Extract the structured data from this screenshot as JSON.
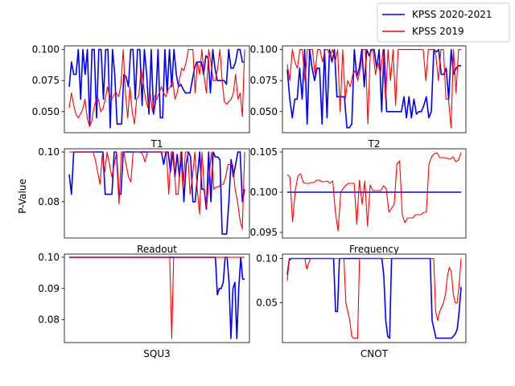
{
  "figure": {
    "ylabel": "P-Value"
  },
  "legend": {
    "placement": "top-right (figure)",
    "entries": [
      {
        "label": "KPSS 2020-2021",
        "color": "#0000ff"
      },
      {
        "label": "KPSS 2019",
        "color": "#ff0000"
      }
    ]
  },
  "chart_data": [
    {
      "type": "line",
      "xlabel": "T1",
      "ylim": [
        0.033,
        0.103
      ],
      "yticks": [
        0.05,
        0.075,
        0.1
      ],
      "ytick_labels": [
        "0.050",
        "0.075",
        "0.100"
      ],
      "series": [
        {
          "name": "KPSS 2020-2021",
          "color": "#0000ff",
          "values": [
            0.07,
            0.09,
            0.08,
            0.08,
            0.1,
            0.06,
            0.1,
            0.08,
            0.1,
            0.04,
            0.1,
            0.1,
            0.045,
            0.1,
            0.1,
            0.06,
            0.1,
            0.1,
            0.037,
            0.1,
            0.08,
            0.04,
            0.04,
            0.04,
            0.08,
            0.078,
            0.07,
            0.1,
            0.1,
            0.06,
            0.1,
            0.1,
            0.055,
            0.1,
            0.08,
            0.048,
            0.1,
            0.048,
            0.06,
            0.1,
            0.045,
            0.045,
            0.1,
            0.065,
            0.1,
            0.07,
            0.1,
            0.08,
            0.07,
            0.072,
            0.068,
            0.065,
            0.065,
            0.065,
            0.075,
            0.085,
            0.09,
            0.09,
            0.09,
            0.08,
            0.095,
            0.093,
            0.065,
            0.1,
            0.085,
            0.075,
            0.075,
            0.075,
            0.075,
            0.072,
            0.1,
            0.085,
            0.085,
            0.09,
            0.1,
            0.1,
            0.09,
            0.09
          ]
        },
        {
          "name": "KPSS 2019",
          "color": "#ff0000",
          "values": [
            0.053,
            0.065,
            0.055,
            0.048,
            0.045,
            0.048,
            0.052,
            0.06,
            0.045,
            0.038,
            0.042,
            0.053,
            0.06,
            0.06,
            0.05,
            0.052,
            0.06,
            0.07,
            0.063,
            0.06,
            0.064,
            0.065,
            0.062,
            0.072,
            0.1,
            0.065,
            0.045,
            0.07,
            0.05,
            0.04,
            0.06,
            0.063,
            0.085,
            0.072,
            0.06,
            0.053,
            0.065,
            0.05,
            0.063,
            0.06,
            0.065,
            0.07,
            0.065,
            0.062,
            0.068,
            0.07,
            0.075,
            0.06,
            0.065,
            0.075,
            0.085,
            0.083,
            0.09,
            0.1,
            0.1,
            0.1,
            0.065,
            0.09,
            0.08,
            0.1,
            0.078,
            0.065,
            0.1,
            0.09,
            0.075,
            0.075,
            0.085,
            0.1,
            0.075,
            0.058,
            0.056,
            0.058,
            0.06,
            0.065,
            0.08,
            0.06,
            0.065,
            0.046,
            0.1
          ]
        }
      ]
    },
    {
      "type": "line",
      "xlabel": "T2",
      "ylim": [
        0.033,
        0.103
      ],
      "yticks": [
        0.05,
        0.075,
        0.1
      ],
      "ytick_labels": [
        "0.050",
        "0.075",
        "0.100"
      ],
      "series": [
        {
          "name": "KPSS 2020-2021",
          "color": "#0000ff",
          "values": [
            0.084,
            0.06,
            0.045,
            0.06,
            0.06,
            0.085,
            0.06,
            0.1,
            0.04,
            0.1,
            0.085,
            0.075,
            0.085,
            0.085,
            0.04,
            0.1,
            0.045,
            0.1,
            0.09,
            0.1,
            0.062,
            0.062,
            0.062,
            0.062,
            0.037,
            0.037,
            0.04,
            0.1,
            0.078,
            0.085,
            0.1,
            0.07,
            0.1,
            0.095,
            0.1,
            0.1,
            0.085,
            0.1,
            0.05,
            0.1,
            0.05,
            0.05,
            0.05,
            0.05,
            0.05,
            0.05,
            0.05,
            0.062,
            0.045,
            0.062,
            0.045,
            0.06,
            0.048,
            0.05,
            0.05,
            0.055,
            0.062,
            0.045,
            0.05,
            0.1,
            0.098,
            0.1,
            0.08,
            0.08,
            0.085,
            0.06,
            0.1,
            0.08,
            0.085,
            0.087,
            0.087
          ]
        },
        {
          "name": "KPSS 2019",
          "color": "#ff0000",
          "values": [
            0.088,
            0.075,
            0.1,
            0.09,
            0.085,
            0.1,
            0.1,
            0.075,
            0.1,
            0.1,
            0.1,
            0.08,
            0.1,
            0.1,
            0.09,
            0.1,
            0.1,
            0.095,
            0.1,
            0.09,
            0.1,
            0.05,
            0.1,
            0.06,
            0.075,
            0.07,
            0.08,
            0.083,
            0.075,
            0.085,
            0.1,
            0.1,
            0.04,
            0.1,
            0.1,
            0.08,
            0.09,
            0.08,
            0.1,
            0.06,
            0.1,
            0.075,
            0.1,
            0.055,
            0.1,
            0.1,
            0.1,
            0.1,
            0.1,
            0.1,
            0.1,
            0.1,
            0.1,
            0.1,
            0.1,
            0.075,
            0.1,
            0.1,
            0.1,
            0.095,
            0.075,
            0.1,
            0.1,
            0.06,
            0.06,
            0.037,
            0.1,
            0.065,
            0.1,
            0.1
          ]
        }
      ]
    },
    {
      "type": "line",
      "xlabel": "Readout",
      "ylim": [
        0.0654,
        0.1013
      ],
      "yticks": [
        0.08,
        0.1
      ],
      "ytick_labels": [
        "0.08",
        "0.10"
      ],
      "series": [
        {
          "name": "KPSS 2020-2021",
          "color": "#0000ff",
          "values": [
            0.091,
            0.083,
            0.1,
            0.1,
            0.1,
            0.1,
            0.1,
            0.1,
            0.1,
            0.1,
            0.1,
            0.1,
            0.1,
            0.1,
            0.1,
            0.1,
            0.083,
            0.083,
            0.083,
            0.083,
            0.1,
            0.1,
            0.083,
            0.083,
            0.1,
            0.1,
            0.1,
            0.1,
            0.1,
            0.1,
            0.1,
            0.1,
            0.1,
            0.1,
            0.1,
            0.1,
            0.1,
            0.1,
            0.1,
            0.1,
            0.1,
            0.1,
            0.095,
            0.1,
            0.1,
            0.092,
            0.1,
            0.09,
            0.099,
            0.09,
            0.1,
            0.08,
            0.095,
            0.1,
            0.098,
            0.08,
            0.08,
            0.09,
            0.1,
            0.085,
            0.085,
            0.077,
            0.1,
            0.08,
            0.1,
            0.098,
            0.098,
            0.097,
            0.067,
            0.067,
            0.067,
            0.08,
            0.097,
            0.09,
            0.095,
            0.1,
            0.1,
            0.08,
            0.085
          ]
        },
        {
          "name": "KPSS 2019",
          "color": "#ff0000",
          "values": [
            0.1,
            0.1,
            0.1,
            0.1,
            0.1,
            0.1,
            0.1,
            0.1,
            0.1,
            0.1,
            0.1,
            0.097,
            0.092,
            0.087,
            0.099,
            0.092,
            0.1,
            0.095,
            0.09,
            0.095,
            0.1,
            0.079,
            0.1,
            0.1,
            0.095,
            0.09,
            0.088,
            0.1,
            0.1,
            0.1,
            0.1,
            0.099,
            0.096,
            0.1,
            0.1,
            0.1,
            0.1,
            0.1,
            0.1,
            0.1,
            0.1,
            0.1,
            0.083,
            0.1,
            0.1,
            0.083,
            0.083,
            0.1,
            0.085,
            0.1,
            0.1,
            0.083,
            0.09,
            0.1,
            0.085,
            0.075,
            0.1,
            0.085,
            0.078,
            0.09,
            0.1,
            0.085,
            0.086,
            0.086,
            0.087,
            0.087,
            0.09,
            0.095,
            0.095,
            0.095,
            0.085,
            0.08,
            0.073,
            0.069,
            0.1
          ]
        }
      ]
    },
    {
      "type": "line",
      "xlabel": "Frequency",
      "ylim": [
        0.0943,
        0.1054
      ],
      "yticks": [
        0.095,
        0.1,
        0.105
      ],
      "ytick_labels": [
        "0.095",
        "0.100",
        "0.105"
      ],
      "series": [
        {
          "name": "KPSS 2020-2021",
          "color": "#0000ff",
          "values": [
            0.1,
            0.1
          ]
        },
        {
          "name": "KPSS 2019",
          "color": "#ff0000",
          "values": [
            0.1022,
            0.1019,
            0.0963,
            0.1003,
            0.102,
            0.1023,
            0.1012,
            0.1011,
            0.1011,
            0.1012,
            0.1012,
            0.1015,
            0.1015,
            0.1013,
            0.1013,
            0.1014,
            0.1011,
            0.1014,
            0.0975,
            0.0952,
            0.1,
            0.1005,
            0.1009,
            0.1011,
            0.1011,
            0.1011,
            0.096,
            0.1015,
            0.0985,
            0.1014,
            0.0958,
            0.1009,
            0.1002,
            0.1002,
            0.1002,
            0.1002,
            0.1008,
            0.1004,
            0.0975,
            0.098,
            0.0985,
            0.1035,
            0.1039,
            0.0972,
            0.0962,
            0.0968,
            0.0968,
            0.0968,
            0.0972,
            0.0972,
            0.0972,
            0.0975,
            0.0975,
            0.1035,
            0.1044,
            0.1048,
            0.1049,
            0.1043,
            0.1043,
            0.1043,
            0.1042,
            0.1041,
            0.1044,
            0.1038,
            0.104,
            0.1049
          ]
        }
      ]
    },
    {
      "type": "line",
      "xlabel": "SQU3",
      "ylim": [
        0.0727,
        0.101
      ],
      "yticks": [
        0.08,
        0.09,
        0.1
      ],
      "ytick_labels": [
        "0.08",
        "0.09",
        "0.10"
      ],
      "series": [
        {
          "name": "KPSS 2020-2021",
          "color": "#0000ff",
          "values": [
            0.1,
            0.1,
            0.1,
            0.1,
            0.1,
            0.1,
            0.1,
            0.1,
            0.1,
            0.1,
            0.1,
            0.1,
            0.1,
            0.1,
            0.1,
            0.1,
            0.1,
            0.1,
            0.1,
            0.1,
            0.1,
            0.1,
            0.1,
            0.1,
            0.1,
            0.1,
            0.1,
            0.1,
            0.1,
            0.1,
            0.1,
            0.1,
            0.1,
            0.1,
            0.1,
            0.1,
            0.1,
            0.1,
            0.1,
            0.1,
            0.1,
            0.1,
            0.1,
            0.1,
            0.1,
            0.1,
            0.1,
            0.1,
            0.1,
            0.1,
            0.1,
            0.1,
            0.1,
            0.1,
            0.1,
            0.1,
            0.1,
            0.1,
            0.1,
            0.1,
            0.1,
            0.1,
            0.1,
            0.1,
            0.1,
            0.1,
            0.1,
            0.1,
            0.1,
            0.1,
            0.1,
            0.1,
            0.1,
            0.1,
            0.1,
            0.1,
            0.088,
            0.09,
            0.09,
            0.092,
            0.1,
            0.1,
            0.092,
            0.074,
            0.09,
            0.092,
            0.074,
            0.09,
            0.1,
            0.093,
            0.093
          ]
        },
        {
          "name": "KPSS 2019",
          "color": "#ff0000",
          "values": [
            0.1,
            0.1,
            0.1,
            0.1,
            0.1,
            0.1,
            0.1,
            0.1,
            0.1,
            0.1,
            0.1,
            0.1,
            0.1,
            0.1,
            0.1,
            0.1,
            0.1,
            0.1,
            0.1,
            0.1,
            0.1,
            0.1,
            0.1,
            0.1,
            0.1,
            0.1,
            0.1,
            0.1,
            0.1,
            0.1,
            0.1,
            0.1,
            0.1,
            0.1,
            0.1,
            0.1,
            0.1,
            0.1,
            0.1,
            0.1,
            0.1,
            0.1,
            0.1,
            0.1,
            0.1,
            0.1,
            0.1,
            0.1,
            0.1,
            0.1,
            0.1,
            0.1,
            0.074,
            0.1,
            0.1,
            0.1,
            0.1,
            0.1,
            0.1,
            0.1,
            0.1,
            0.1,
            0.1,
            0.1,
            0.1,
            0.1,
            0.1,
            0.1,
            0.1,
            0.1,
            0.1,
            0.1,
            0.1,
            0.1,
            0.1,
            0.1,
            0.1,
            0.1,
            0.1,
            0.1,
            0.1,
            0.1,
            0.1,
            0.1,
            0.1,
            0.1,
            0.1,
            0.1,
            0.1,
            0.1
          ]
        }
      ]
    },
    {
      "type": "line",
      "xlabel": "CNOT",
      "ylim": [
        0.005,
        0.105
      ],
      "yticks": [
        0.05,
        0.1
      ],
      "ytick_labels": [
        "0.05",
        "0.10"
      ],
      "series": [
        {
          "name": "KPSS 2020-2021",
          "color": "#0000ff",
          "values": [
            0.082,
            0.098,
            0.1,
            0.1,
            0.1,
            0.1,
            0.1,
            0.1,
            0.1,
            0.1,
            0.1,
            0.1,
            0.1,
            0.1,
            0.1,
            0.1,
            0.1,
            0.1,
            0.1,
            0.1,
            0.1,
            0.1,
            0.1,
            0.1,
            0.1,
            0.04,
            0.04,
            0.1,
            0.1,
            0.1,
            0.1,
            0.1,
            0.1,
            0.1,
            0.1,
            0.1,
            0.1,
            0.1,
            0.1,
            0.1,
            0.1,
            0.1,
            0.1,
            0.1,
            0.1,
            0.1,
            0.1,
            0.1,
            0.1,
            0.1,
            0.08,
            0.03,
            0.012,
            0.01,
            0.1,
            0.1,
            0.1,
            0.1,
            0.1,
            0.1,
            0.1,
            0.1,
            0.1,
            0.1,
            0.1,
            0.1,
            0.1,
            0.1,
            0.1,
            0.1,
            0.1,
            0.1,
            0.1,
            0.1,
            0.1,
            0.03,
            0.02,
            0.01,
            0.01,
            0.01,
            0.01,
            0.01,
            0.01,
            0.01,
            0.01,
            0.01,
            0.012,
            0.015,
            0.02,
            0.04,
            0.068
          ]
        },
        {
          "name": "KPSS 2019",
          "color": "#ff0000",
          "values": [
            0.075,
            0.1,
            0.1,
            0.1,
            0.1,
            0.1,
            0.1,
            0.1,
            0.1,
            0.1,
            0.088,
            0.095,
            0.1,
            0.1,
            0.1,
            0.1,
            0.1,
            0.1,
            0.1,
            0.1,
            0.1,
            0.1,
            0.1,
            0.1,
            0.1,
            0.1,
            0.1,
            0.1,
            0.1,
            0.1,
            0.05,
            0.04,
            0.03,
            0.012,
            0.01,
            0.01,
            0.01,
            0.1,
            0.1,
            0.1,
            0.1,
            0.1,
            0.1,
            0.1,
            0.1,
            0.1,
            0.1,
            0.1,
            0.1,
            0.1,
            0.1,
            0.1,
            0.1,
            0.1,
            0.1,
            0.1,
            0.1,
            0.1,
            0.1,
            0.1,
            0.1,
            0.1,
            0.1,
            0.1,
            0.1,
            0.1,
            0.1,
            0.1,
            0.1,
            0.1,
            0.1,
            0.1,
            0.1,
            0.1,
            0.1,
            0.1,
            0.04,
            0.03,
            0.04,
            0.045,
            0.05,
            0.06,
            0.08,
            0.09,
            0.085,
            0.06,
            0.05,
            0.05,
            0.07,
            0.1
          ]
        }
      ]
    }
  ]
}
